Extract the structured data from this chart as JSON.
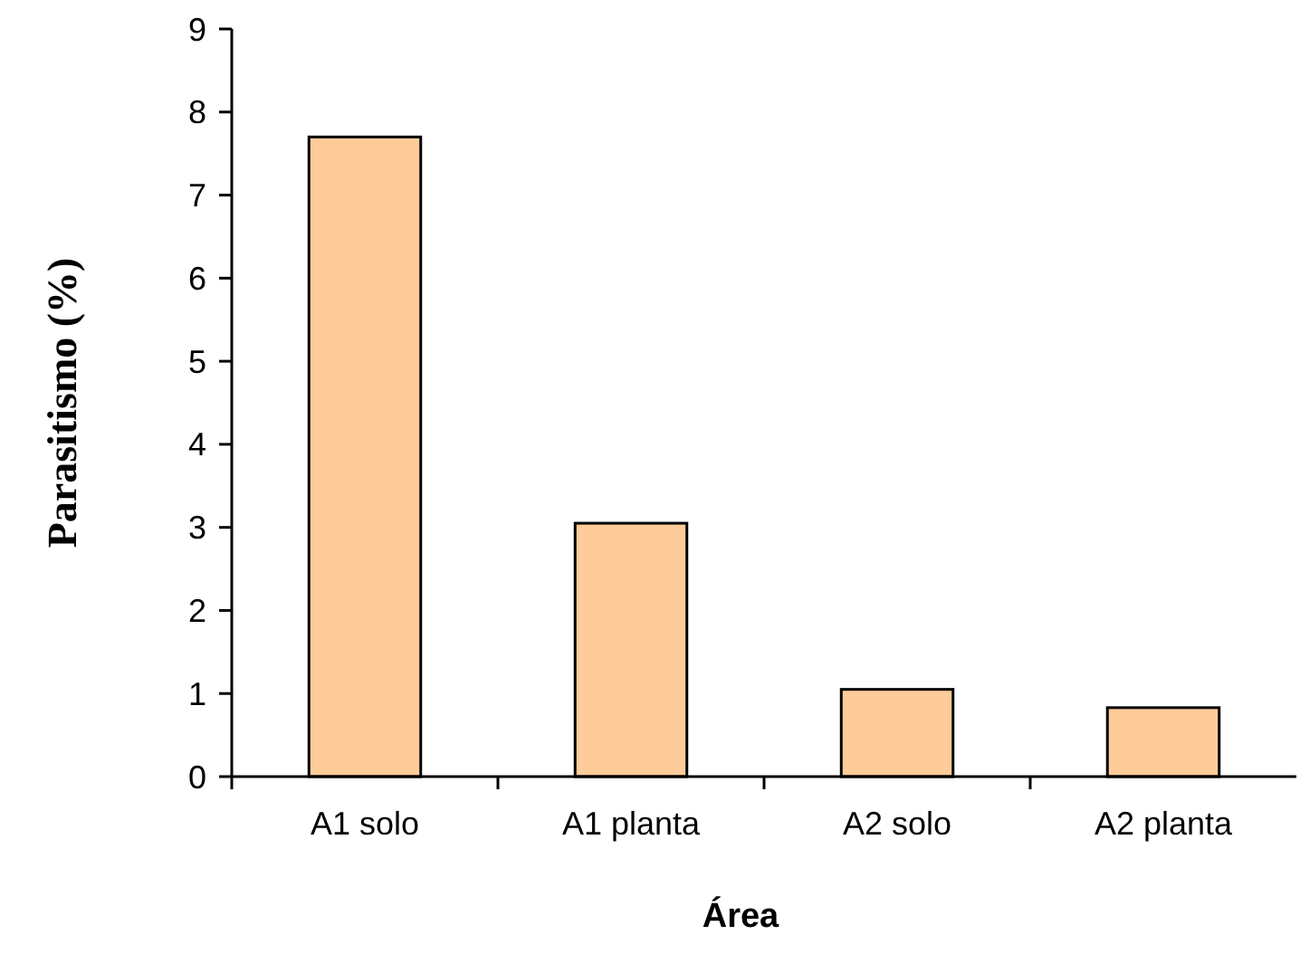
{
  "chart_data": {
    "type": "bar",
    "xlabel": "Área",
    "ylabel": "Parasitismo (%)",
    "categories": [
      "A1 solo",
      "A1 planta",
      "A2 solo",
      "A2 planta"
    ],
    "values": [
      7.7,
      3.05,
      1.05,
      0.83
    ],
    "color": "#fecc99",
    "ylim": [
      0,
      9
    ],
    "yticks": [
      0,
      1,
      2,
      3,
      4,
      5,
      6,
      7,
      8,
      9
    ],
    "grid": false
  }
}
